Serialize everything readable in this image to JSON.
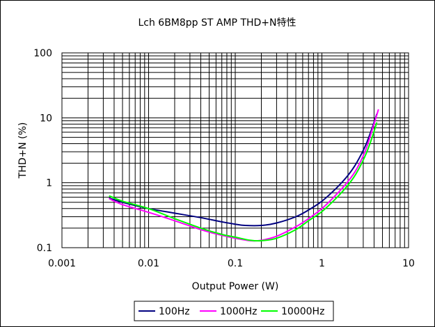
{
  "chart_data": {
    "type": "line",
    "title": "Lch  6BM8pp ST AMP THD+N特性",
    "xlabel": "Output Power (W)",
    "ylabel": "THD+N (%)",
    "x_scale": "log",
    "y_scale": "log",
    "xlim": [
      0.001,
      10
    ],
    "ylim": [
      0.1,
      100
    ],
    "x_ticks": [
      "0.001",
      "0.01",
      "0.1",
      "1",
      "10"
    ],
    "y_ticks": [
      "0.1",
      "1",
      "10",
      "100"
    ],
    "grid": true,
    "legend_position": "bottom",
    "series": [
      {
        "name": "100Hz",
        "color": "#000080",
        "points": [
          [
            0.0035,
            0.58
          ],
          [
            0.005,
            0.5
          ],
          [
            0.01,
            0.4
          ],
          [
            0.02,
            0.34
          ],
          [
            0.04,
            0.29
          ],
          [
            0.07,
            0.25
          ],
          [
            0.1,
            0.23
          ],
          [
            0.13,
            0.22
          ],
          [
            0.2,
            0.22
          ],
          [
            0.3,
            0.24
          ],
          [
            0.5,
            0.3
          ],
          [
            0.7,
            0.38
          ],
          [
            1.0,
            0.52
          ],
          [
            1.5,
            0.85
          ],
          [
            2.0,
            1.3
          ],
          [
            2.5,
            2.0
          ],
          [
            3.2,
            3.8
          ],
          [
            3.8,
            7.0
          ],
          [
            4.3,
            11.5
          ]
        ]
      },
      {
        "name": "1000Hz",
        "color": "#ff00ff",
        "points": [
          [
            0.0035,
            0.57
          ],
          [
            0.005,
            0.46
          ],
          [
            0.01,
            0.35
          ],
          [
            0.02,
            0.26
          ],
          [
            0.04,
            0.19
          ],
          [
            0.07,
            0.155
          ],
          [
            0.1,
            0.14
          ],
          [
            0.15,
            0.128
          ],
          [
            0.2,
            0.13
          ],
          [
            0.3,
            0.15
          ],
          [
            0.5,
            0.21
          ],
          [
            0.7,
            0.28
          ],
          [
            1.0,
            0.4
          ],
          [
            1.5,
            0.68
          ],
          [
            2.0,
            1.05
          ],
          [
            2.5,
            1.6
          ],
          [
            3.2,
            3.2
          ],
          [
            3.8,
            6.5
          ],
          [
            4.5,
            13.5
          ]
        ]
      },
      {
        "name": "10000Hz",
        "color": "#00ff00",
        "points": [
          [
            0.0035,
            0.63
          ],
          [
            0.005,
            0.52
          ],
          [
            0.01,
            0.4
          ],
          [
            0.02,
            0.28
          ],
          [
            0.04,
            0.2
          ],
          [
            0.07,
            0.16
          ],
          [
            0.1,
            0.145
          ],
          [
            0.15,
            0.13
          ],
          [
            0.2,
            0.128
          ],
          [
            0.3,
            0.14
          ],
          [
            0.5,
            0.19
          ],
          [
            0.7,
            0.26
          ],
          [
            1.0,
            0.36
          ],
          [
            1.5,
            0.6
          ],
          [
            2.0,
            0.92
          ],
          [
            2.5,
            1.4
          ],
          [
            3.2,
            2.7
          ],
          [
            3.8,
            5.0
          ],
          [
            4.3,
            8.5
          ]
        ]
      }
    ]
  }
}
